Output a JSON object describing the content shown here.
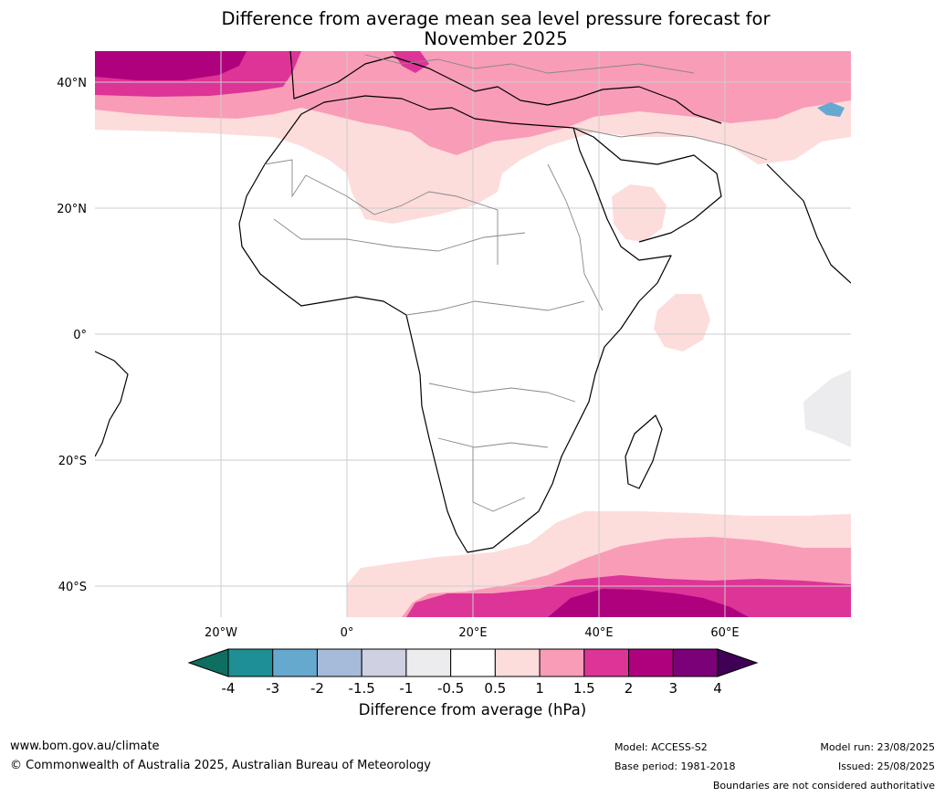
{
  "title": {
    "line1": "Difference from average mean sea level pressure forecast for",
    "line2": "November 2025"
  },
  "map": {
    "region": "Africa",
    "lat_ticks": [
      "40°N",
      "20°N",
      "0°",
      "20°S",
      "40°S"
    ],
    "lon_ticks": [
      "20°W",
      "0°",
      "20°E",
      "40°E",
      "60°E"
    ],
    "land_fill": "#ffffff",
    "coast_color": "#000000",
    "border_color": "#888888",
    "grid_color": "#cccccc"
  },
  "colorbar": {
    "title": "Difference from average (hPa)",
    "labels": [
      "-4",
      "-3",
      "-2",
      "-1.5",
      "-1",
      "-0.5",
      "0.5",
      "1",
      "1.5",
      "2",
      "3",
      "4"
    ],
    "below_color": "#0e6e61",
    "above_color": "#3f0055",
    "colors": [
      "#1d8f95",
      "#66a9cf",
      "#a6bbd9",
      "#cfd0e2",
      "#ecebee",
      "#ffffff",
      "#fddcdc",
      "#f99cb8",
      "#dd3497",
      "#ae017e",
      "#7a0177"
    ]
  },
  "footer": {
    "url": "www.bom.gov.au/climate",
    "copyright": "© Commonwealth of Australia 2025, Australian Bureau of Meteorology",
    "model": "Model: ACCESS-S2",
    "base_period": "Base period: 1981-2018",
    "model_run": "Model run: 23/08/2025",
    "issued": "Issued: 25/08/2025",
    "boundaries": "Boundaries are not considered authoritative"
  }
}
